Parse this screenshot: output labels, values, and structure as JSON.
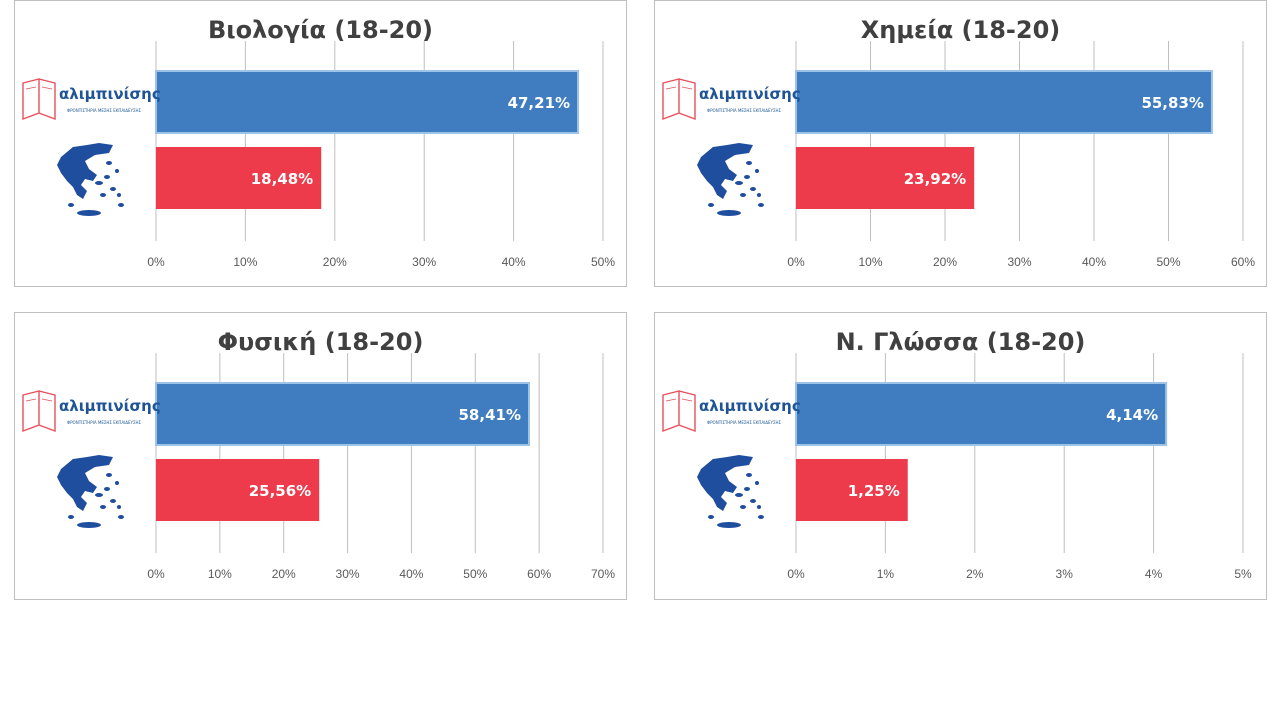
{
  "colors": {
    "school": "#3f7cc0",
    "school_border": "#9dc3e6",
    "national": "#ee3b4b",
    "grid": "#bfbfbf",
    "logo_text": "#1f5597",
    "logo_book": "#e8505b",
    "map": "#1f4e9e"
  },
  "logo": {
    "name": "αλιμπινίσης",
    "subtitle": "ΦΡΟΝΤΙΣΤΗΡΙΑ ΜΕΣΗΣ ΕΚΠΑΙΔΕΥΣΗΣ"
  },
  "icons": {
    "school": "open-book-logo-icon",
    "national": "greece-map-icon"
  },
  "chart_data": [
    {
      "type": "bar",
      "orientation": "horizontal",
      "title": "Βιολογία (18-20)",
      "categories": [
        "αλιμπινίσης",
        "Greece"
      ],
      "values": [
        47.21,
        18.48
      ],
      "labels": [
        "47,21%",
        "18,48%"
      ],
      "xlim": [
        0,
        50
      ],
      "ticks": [
        0,
        10,
        20,
        30,
        40,
        50
      ],
      "tick_labels": [
        "0%",
        "10%",
        "20%",
        "30%",
        "40%",
        "50%"
      ]
    },
    {
      "type": "bar",
      "orientation": "horizontal",
      "title": "Χημεία (18-20)",
      "categories": [
        "αλιμπινίσης",
        "Greece"
      ],
      "values": [
        55.83,
        23.92
      ],
      "labels": [
        "55,83%",
        "23,92%"
      ],
      "xlim": [
        0,
        60
      ],
      "ticks": [
        0,
        10,
        20,
        30,
        40,
        50,
        60
      ],
      "tick_labels": [
        "0%",
        "10%",
        "20%",
        "30%",
        "40%",
        "50%",
        "60%"
      ]
    },
    {
      "type": "bar",
      "orientation": "horizontal",
      "title": "Φυσική (18-20)",
      "categories": [
        "αλιμπινίσης",
        "Greece"
      ],
      "values": [
        58.41,
        25.56
      ],
      "labels": [
        "58,41%",
        "25,56%"
      ],
      "xlim": [
        0,
        70
      ],
      "ticks": [
        0,
        10,
        20,
        30,
        40,
        50,
        60,
        70
      ],
      "tick_labels": [
        "0%",
        "10%",
        "20%",
        "30%",
        "40%",
        "50%",
        "60%",
        "70%"
      ]
    },
    {
      "type": "bar",
      "orientation": "horizontal",
      "title": "Ν. Γλώσσα (18-20)",
      "categories": [
        "αλιμπινίσης",
        "Greece"
      ],
      "values": [
        4.14,
        1.25
      ],
      "labels": [
        "4,14%",
        "1,25%"
      ],
      "xlim": [
        0,
        5
      ],
      "ticks": [
        0,
        1,
        2,
        3,
        4,
        5
      ],
      "tick_labels": [
        "0%",
        "1%",
        "2%",
        "3%",
        "4%",
        "5%"
      ]
    }
  ]
}
